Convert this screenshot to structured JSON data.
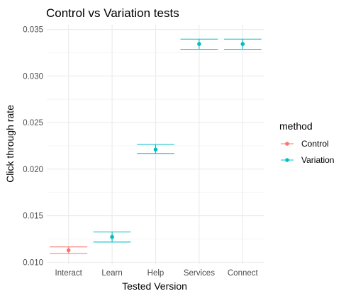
{
  "chart_data": {
    "type": "scatter",
    "title": "Control vs Variation tests",
    "xlabel": "Tested Version",
    "ylabel": "Click through rate",
    "categories": [
      "Interact",
      "Learn",
      "Help",
      "Services",
      "Connect"
    ],
    "ylim": [
      0.0098,
      0.0355
    ],
    "yticks": [
      0.01,
      0.015,
      0.02,
      0.025,
      0.03,
      0.035
    ],
    "ytick_labels": [
      "0.010",
      "0.015",
      "0.020",
      "0.025",
      "0.030",
      "0.035"
    ],
    "grid": true,
    "legend": {
      "title": "method",
      "position": "right",
      "entries": [
        "Control",
        "Variation"
      ]
    },
    "series": [
      {
        "name": "Control",
        "color": "#F8766D",
        "points": [
          {
            "x": "Interact",
            "y": 0.01129,
            "ymin": 0.01095,
            "ymax": 0.01165
          }
        ]
      },
      {
        "name": "Variation",
        "color": "#00BFC4",
        "points": [
          {
            "x": "Learn",
            "y": 0.01272,
            "ymin": 0.01217,
            "ymax": 0.01325
          },
          {
            "x": "Help",
            "y": 0.0221,
            "ymin": 0.02168,
            "ymax": 0.02265
          },
          {
            "x": "Services",
            "y": 0.03344,
            "ymin": 0.03287,
            "ymax": 0.03396
          },
          {
            "x": "Connect",
            "y": 0.03344,
            "ymin": 0.03287,
            "ymax": 0.03396
          }
        ]
      }
    ]
  }
}
